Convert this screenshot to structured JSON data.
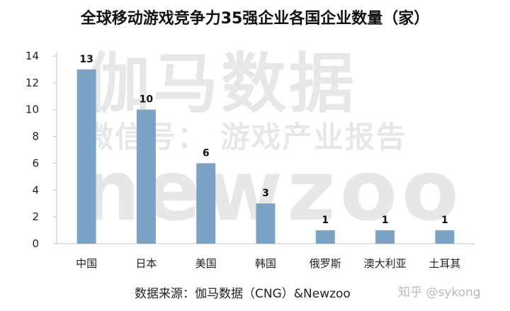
{
  "title": "全球移动游戏竞争力35强企业各国企业数量（家）",
  "watermark": {
    "brand": "伽马数据",
    "wechat": "微信号： 游戏产业报告",
    "newzoo": "newzoo"
  },
  "source": "数据来源：伽马数据（CNG）&Newzoo",
  "credit": "知乎 @sykong",
  "colors": {
    "bar": "#7ba3c6",
    "axis": "#bfbfbf",
    "text": "#222222"
  },
  "chart_data": {
    "type": "bar",
    "title": "全球移动游戏竞争力35强企业各国企业数量（家）",
    "categories": [
      "中国",
      "日本",
      "美国",
      "韩国",
      "俄罗斯",
      "澳大利亚",
      "土耳其"
    ],
    "values": [
      13,
      10,
      6,
      3,
      1,
      1,
      1
    ],
    "ylim": [
      0,
      14
    ],
    "yticks": [
      0,
      2,
      4,
      6,
      8,
      10,
      12,
      14
    ],
    "data_labels": true,
    "grid": false,
    "xlabel": "",
    "ylabel": ""
  }
}
